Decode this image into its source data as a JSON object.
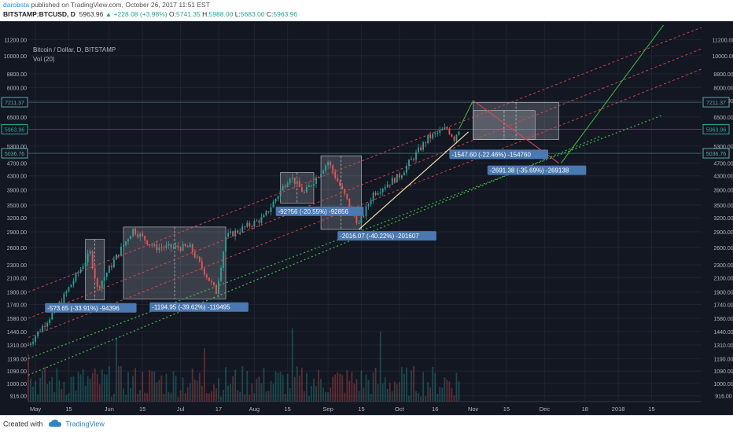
{
  "header": {
    "author": "darobsta",
    "published_text": "published on TradingView.com, October 26, 2017 11:51 EST",
    "symbol": "BITSTAMP:BTCUSD, D",
    "last": "5963.96",
    "change": "+228.08 (+3.98%)",
    "ohlc": [
      {
        "k": "O:",
        "v": "5741.35"
      },
      {
        "k": "H:",
        "v": "5988.00"
      },
      {
        "k": "L:",
        "v": "5683.00"
      },
      {
        "k": "C:",
        "v": "5963.96"
      }
    ]
  },
  "legend": {
    "title": "Bitcoin / Dollar, D, BITSTAMP",
    "volume": "Vol (20)"
  },
  "footer": {
    "created_with": "Created with",
    "brand": "TradingView"
  },
  "chart_data": {
    "type": "candlestick",
    "scale": "log",
    "y_ticks": [
      916.0,
      1000.0,
      1090.0,
      1190.0,
      1310.0,
      1440.0,
      1580.0,
      1740.0,
      1900.0,
      2100.0,
      2300.0,
      2600.0,
      2900.0,
      3200.0,
      3500.0,
      3900.0,
      4300.0,
      4700.0,
      5300.0,
      6500.0,
      7300.0,
      8000.0,
      8800.0,
      10000.0,
      11200.0
    ],
    "y_tick_labels": [
      "916.00",
      "1000.00",
      "1090.00",
      "1190.00",
      "1310.00",
      "1440.00",
      "1580.00",
      "1740.00",
      "1900.00",
      "2100.00",
      "2300.00",
      "2600.00",
      "2900.00",
      "3200.00",
      "3500.00",
      "3900.00",
      "4300.00",
      "4700.00",
      "5300.00",
      "6500.00",
      "7300.00",
      "8000.00",
      "8800.00",
      "10000.00",
      "11200.00"
    ],
    "y_range": [
      880,
      12600
    ],
    "x_range": [
      "2017-04-28",
      "2018-02-05"
    ],
    "x_ticks": [
      {
        "label": "May",
        "date": "2017-05-01"
      },
      {
        "label": "15",
        "date": "2017-05-15"
      },
      {
        "label": "Jun",
        "date": "2017-06-01"
      },
      {
        "label": "15",
        "date": "2017-06-15"
      },
      {
        "label": "Jul",
        "date": "2017-07-01"
      },
      {
        "label": "17",
        "date": "2017-07-17"
      },
      {
        "label": "Aug",
        "date": "2017-08-01"
      },
      {
        "label": "15",
        "date": "2017-08-15"
      },
      {
        "label": "Sep",
        "date": "2017-09-01"
      },
      {
        "label": "15",
        "date": "2017-09-15"
      },
      {
        "label": "Oct",
        "date": "2017-10-01"
      },
      {
        "label": "16",
        "date": "2017-10-16"
      },
      {
        "label": "Nov",
        "date": "2017-11-01"
      },
      {
        "label": "15",
        "date": "2017-11-15"
      },
      {
        "label": "Dec",
        "date": "2017-12-01"
      },
      {
        "label": "18",
        "date": "2017-12-18"
      },
      {
        "label": "2018",
        "date": "2018-01-01"
      },
      {
        "label": "15",
        "date": "2018-01-15"
      }
    ],
    "price_tags": [
      {
        "value": 7211.37,
        "label": "7211.37",
        "color": "#5fa8a8"
      },
      {
        "value": 5963.96,
        "label": "5963.96",
        "color": "#26a69a"
      },
      {
        "value": 5036.76,
        "label": "5036.76",
        "color": "#5fa8a8"
      }
    ],
    "key_closes": [
      {
        "date": "2017-04-28",
        "close": 1310
      },
      {
        "date": "2017-05-10",
        "close": 1700
      },
      {
        "date": "2017-05-24",
        "close": 2500
      },
      {
        "date": "2017-05-27",
        "close": 1950
      },
      {
        "date": "2017-06-11",
        "close": 2950
      },
      {
        "date": "2017-06-20",
        "close": 2600
      },
      {
        "date": "2017-07-05",
        "close": 2600
      },
      {
        "date": "2017-07-16",
        "close": 1900
      },
      {
        "date": "2017-07-20",
        "close": 2800
      },
      {
        "date": "2017-08-05",
        "close": 3200
      },
      {
        "date": "2017-08-16",
        "close": 4300
      },
      {
        "date": "2017-08-22",
        "close": 3800
      },
      {
        "date": "2017-09-01",
        "close": 4750
      },
      {
        "date": "2017-09-14",
        "close": 3050
      },
      {
        "date": "2017-09-20",
        "close": 3800
      },
      {
        "date": "2017-10-01",
        "close": 4300
      },
      {
        "date": "2017-10-13",
        "close": 5600
      },
      {
        "date": "2017-10-21",
        "close": 6000
      },
      {
        "date": "2017-10-24",
        "close": 5600
      },
      {
        "date": "2017-10-26",
        "close": 5963.96
      }
    ],
    "measure_labels": [
      {
        "text": "-5?3.65 (-33.91%) -94396",
        "date": "2017-05-05",
        "price": 1700
      },
      {
        "text": "-1194.95 (-39.62%) -119495",
        "date": "2017-06-18",
        "price": 1710
      },
      {
        "text": "-92?56 (-20.55%) -92856",
        "date": "2017-08-10",
        "price": 3350
      },
      {
        "text": "-2016.07 (-40.22%) -201607",
        "date": "2017-09-05",
        "price": 2820
      },
      {
        "text": "-1547.60 (-22.46%) -154760",
        "date": "2017-10-22",
        "price": 5000
      },
      {
        "text": "-2691.38 (-35.69%) -269138",
        "date": "2017-11-07",
        "price": 4470
      }
    ],
    "measure_boxes": [
      {
        "from": "2017-05-22",
        "to": "2017-05-30",
        "high": 2750,
        "low": 1800
      },
      {
        "from": "2017-06-07",
        "to": "2017-07-20",
        "high": 3000,
        "low": 1810
      },
      {
        "from": "2017-08-12",
        "to": "2017-08-26",
        "high": 4400,
        "low": 3550
      },
      {
        "from": "2017-08-29",
        "to": "2017-09-15",
        "high": 4950,
        "low": 2950
      },
      {
        "from": "2017-11-01",
        "to": "2017-12-07",
        "high": 7200,
        "low": 5550
      },
      {
        "from": "2017-11-01",
        "to": "2017-11-27",
        "high": 6800,
        "low": 5550
      }
    ],
    "trend_lines": [
      {
        "kind": "channel-red",
        "from": {
          "date": "2017-04-28",
          "price": 1900
        },
        "to": {
          "date": "2018-02-05",
          "price": 12200
        }
      },
      {
        "kind": "channel-red",
        "from": {
          "date": "2017-04-28",
          "price": 1580
        },
        "to": {
          "date": "2018-02-05",
          "price": 10500
        }
      },
      {
        "kind": "channel-red",
        "from": {
          "date": "2017-04-28",
          "price": 1380
        },
        "to": {
          "date": "2018-02-05",
          "price": 9100
        }
      },
      {
        "kind": "support-green",
        "from": {
          "date": "2017-04-28",
          "price": 1190
        },
        "to": {
          "date": "2018-01-20",
          "price": 6600
        }
      },
      {
        "kind": "support-green",
        "from": {
          "date": "2017-04-28",
          "price": 1060
        },
        "to": {
          "date": "2017-12-25",
          "price": 5700
        }
      },
      {
        "kind": "trend-yellow",
        "from": {
          "date": "2017-09-14",
          "price": 2950
        },
        "to": {
          "date": "2017-10-30",
          "price": 5850
        }
      },
      {
        "kind": "projection-green",
        "from": {
          "date": "2017-10-26",
          "price": 5963.96
        },
        "to": {
          "date": "2017-11-01",
          "price": 7300
        }
      },
      {
        "kind": "projection-green",
        "from": {
          "date": "2017-12-08",
          "price": 4700
        },
        "to": {
          "date": "2018-01-20",
          "price": 12400
        }
      },
      {
        "kind": "projection-red",
        "from": {
          "date": "2017-11-01",
          "price": 7300
        },
        "to": {
          "date": "2017-12-07",
          "price": 4700
        }
      }
    ]
  },
  "colors": {
    "up": "#26a69a",
    "down": "#ef5350",
    "background": "#131722",
    "grid": "#1f2330",
    "axis_text": "#b2b5be"
  }
}
